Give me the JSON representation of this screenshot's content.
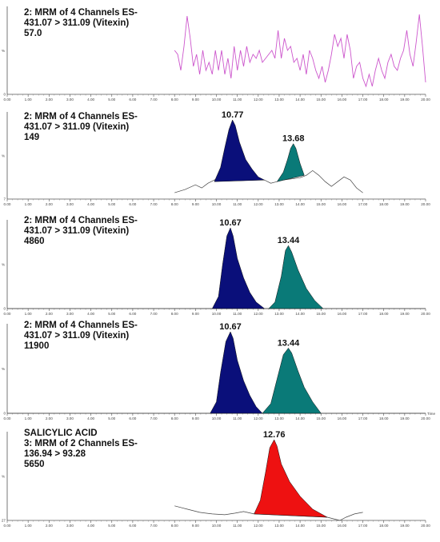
{
  "chart_data": [
    {
      "type": "line",
      "header": [
        "2: MRM of 4 Channels ES-",
        "431.07 > 311.09 (Vitexin)",
        "57.0"
      ],
      "y_label": "%",
      "y_tick_labels": [
        "0"
      ],
      "x_tick_labels": [
        "0.00",
        "1.00",
        "2.00",
        "3.00",
        "4.00",
        "5.00",
        "6.00",
        "7.00",
        "8.00",
        "9.00",
        "10.00",
        "11.00",
        "12.00",
        "13.00",
        "14.00",
        "15.00",
        "16.00",
        "17.00",
        "18.00",
        "19.00",
        "20.00"
      ],
      "xlim": [
        0,
        20
      ],
      "ylim": [
        0,
        100
      ],
      "trace_color": "#cc55cc",
      "series": [
        {
          "x": [
            8.0,
            8.15,
            8.3,
            8.45,
            8.6,
            8.75,
            8.9,
            9.05,
            9.2,
            9.35,
            9.5,
            9.65,
            9.8,
            9.95,
            10.1,
            10.25,
            10.4,
            10.55,
            10.7,
            10.85,
            11.0,
            11.15,
            11.3,
            11.45,
            11.6,
            11.75,
            11.9,
            12.05,
            12.2,
            12.35,
            12.5,
            12.65,
            12.8,
            12.95,
            13.1,
            13.25,
            13.4,
            13.55,
            13.7,
            13.85,
            14.0,
            14.15,
            14.3,
            14.45,
            14.6,
            14.75,
            14.9,
            15.05,
            15.2,
            15.35,
            15.5,
            15.65,
            15.8,
            15.95,
            16.1,
            16.25,
            16.4,
            16.55,
            16.7,
            16.85,
            17.0,
            17.15,
            17.3,
            17.45,
            17.6,
            17.75,
            17.9,
            18.05,
            18.2,
            18.35,
            18.5,
            18.65,
            18.8,
            18.95,
            19.1,
            19.25,
            19.4,
            19.55,
            19.7,
            19.85,
            20.0
          ],
          "y": [
            55,
            50,
            30,
            60,
            98,
            70,
            35,
            50,
            25,
            55,
            30,
            40,
            25,
            55,
            30,
            55,
            25,
            45,
            20,
            60,
            30,
            55,
            35,
            60,
            40,
            50,
            45,
            55,
            40,
            45,
            50,
            55,
            45,
            80,
            45,
            70,
            55,
            60,
            40,
            45,
            30,
            50,
            25,
            55,
            45,
            30,
            20,
            35,
            15,
            30,
            50,
            75,
            60,
            70,
            45,
            75,
            55,
            20,
            35,
            40,
            20,
            10,
            25,
            10,
            30,
            45,
            30,
            20,
            40,
            50,
            35,
            30,
            45,
            55,
            80,
            50,
            35,
            65,
            100,
            60,
            15
          ]
        }
      ]
    },
    {
      "type": "area",
      "header": [
        "2: MRM of 4 Channels ES-",
        "431.07 > 311.09 (Vitexin)",
        "149"
      ],
      "y_label": "%",
      "y_tick_labels": [
        "7"
      ],
      "x_tick_labels": [
        "0.00",
        "1.00",
        "2.00",
        "3.00",
        "4.00",
        "5.00",
        "6.00",
        "7.00",
        "8.00",
        "9.00",
        "10.00",
        "11.00",
        "12.00",
        "13.00",
        "14.00",
        "15.00",
        "16.00",
        "17.00",
        "18.00",
        "19.00",
        "20.00"
      ],
      "xlim": [
        0,
        20
      ],
      "ylim": [
        0,
        100
      ],
      "peak_labels": [
        "10.77",
        "13.68"
      ],
      "baseline": {
        "x": [
          8.0,
          8.5,
          9.0,
          9.3,
          9.6,
          9.9,
          10.1,
          12.3,
          12.6,
          12.9,
          13.2,
          14.0,
          14.3,
          14.6,
          14.9,
          15.2,
          15.5,
          15.8,
          16.1,
          16.4,
          16.7,
          17.0
        ],
        "y": [
          8,
          12,
          18,
          14,
          20,
          24,
          27,
          24,
          20,
          22,
          24,
          27,
          30,
          36,
          30,
          22,
          16,
          22,
          28,
          24,
          14,
          8
        ]
      },
      "peaks": [
        {
          "color": "#0a0f7a",
          "x": [
            9.9,
            10.2,
            10.4,
            10.6,
            10.77,
            10.9,
            11.1,
            11.4,
            11.7,
            12.0,
            12.3
          ],
          "y": [
            22,
            40,
            65,
            88,
            100,
            93,
            72,
            50,
            38,
            28,
            24
          ]
        },
        {
          "color": "#0a7a78",
          "x": [
            12.9,
            13.2,
            13.4,
            13.55,
            13.68,
            13.8,
            14.0,
            14.2
          ],
          "y": [
            22,
            34,
            50,
            64,
            70,
            64,
            45,
            30
          ]
        }
      ]
    },
    {
      "type": "area",
      "header": [
        "2: MRM of 4 Channels ES-",
        "431.07 > 311.09 (Vitexin)",
        "4860"
      ],
      "y_label": "%",
      "y_tick_labels": [
        "0"
      ],
      "x_tick_labels": [
        "0.00",
        "1.00",
        "2.00",
        "3.00",
        "4.00",
        "5.00",
        "6.00",
        "7.00",
        "8.00",
        "9.00",
        "10.00",
        "11.00",
        "12.00",
        "13.00",
        "14.00",
        "15.00",
        "16.00",
        "17.00",
        "18.00",
        "19.00",
        "20.00"
      ],
      "xlim": [
        0,
        20
      ],
      "ylim": [
        0,
        100
      ],
      "peak_labels": [
        "10.67",
        "13.44"
      ],
      "baseline": {
        "x": [
          0,
          20
        ],
        "y": [
          0,
          0
        ]
      },
      "peaks": [
        {
          "color": "#0a0f7a",
          "x": [
            9.8,
            10.1,
            10.3,
            10.5,
            10.67,
            10.8,
            11.0,
            11.3,
            11.6,
            11.9,
            12.3
          ],
          "y": [
            0,
            15,
            55,
            90,
            100,
            90,
            62,
            38,
            20,
            8,
            0
          ]
        },
        {
          "color": "#0a7a78",
          "x": [
            12.5,
            12.8,
            13.1,
            13.3,
            13.44,
            13.6,
            13.9,
            14.3,
            14.7,
            15.1
          ],
          "y": [
            0,
            8,
            40,
            72,
            78,
            70,
            48,
            25,
            10,
            0
          ]
        }
      ]
    },
    {
      "type": "area",
      "header": [
        "2: MRM of 4 Channels ES-",
        "431.07 > 311.09 (Vitexin)",
        "11900"
      ],
      "y_label": "%",
      "y_tick_labels": [
        "0"
      ],
      "x_tick_labels": [
        "0.00",
        "1.00",
        "2.00",
        "3.00",
        "4.00",
        "5.00",
        "6.00",
        "7.00",
        "8.00",
        "9.00",
        "10.00",
        "11.00",
        "12.00",
        "13.00",
        "14.00",
        "15.00",
        "16.00",
        "17.00",
        "18.00",
        "19.00",
        "20.00"
      ],
      "x_axis_suffix": "Time",
      "xlim": [
        0,
        20
      ],
      "ylim": [
        0,
        100
      ],
      "peak_labels": [
        "10.67",
        "13.44"
      ],
      "baseline": {
        "x": [
          0,
          20
        ],
        "y": [
          0,
          0
        ]
      },
      "peaks": [
        {
          "color": "#0a0f7a",
          "x": [
            9.7,
            10.0,
            10.2,
            10.45,
            10.67,
            10.8,
            11.0,
            11.3,
            11.6,
            11.9,
            12.2
          ],
          "y": [
            0,
            14,
            50,
            88,
            100,
            92,
            65,
            40,
            22,
            8,
            0
          ]
        },
        {
          "color": "#0a7a78",
          "x": [
            12.2,
            12.6,
            12.9,
            13.2,
            13.44,
            13.6,
            13.9,
            14.2,
            14.6,
            15.0
          ],
          "y": [
            0,
            12,
            42,
            72,
            80,
            74,
            52,
            32,
            14,
            0
          ]
        }
      ]
    },
    {
      "type": "area",
      "header": [
        "SALICYLIC ACID",
        "3: MRM of 2 Channels ES-",
        "136.94 > 93.28",
        "5650"
      ],
      "y_label": "%",
      "y_tick_labels": [
        "27"
      ],
      "x_tick_labels": [
        "0.00",
        "1.00",
        "2.00",
        "3.00",
        "4.00",
        "5.00",
        "6.00",
        "7.00",
        "8.00",
        "9.00",
        "10.00",
        "11.00",
        "12.00",
        "13.00",
        "14.00",
        "15.00",
        "16.00",
        "17.00",
        "18.00",
        "19.00",
        "20.00"
      ],
      "xlim": [
        0,
        20
      ],
      "ylim": [
        0,
        100
      ],
      "peak_labels": [
        "12.76"
      ],
      "baseline": {
        "x": [
          8.0,
          8.6,
          9.2,
          9.8,
          10.4,
          10.9,
          11.3,
          11.8,
          15.3,
          15.6,
          15.9,
          16.2,
          16.6,
          17.0
        ],
        "y": [
          18,
          14,
          10,
          8,
          7,
          9,
          11,
          8,
          4,
          2,
          0,
          4,
          8,
          10
        ]
      },
      "peaks": [
        {
          "color": "#ee1111",
          "x": [
            11.8,
            12.1,
            12.35,
            12.55,
            12.76,
            12.9,
            13.1,
            13.5,
            14.0,
            14.6,
            15.3
          ],
          "y": [
            8,
            25,
            60,
            90,
            100,
            92,
            70,
            48,
            30,
            14,
            4
          ]
        }
      ]
    }
  ]
}
